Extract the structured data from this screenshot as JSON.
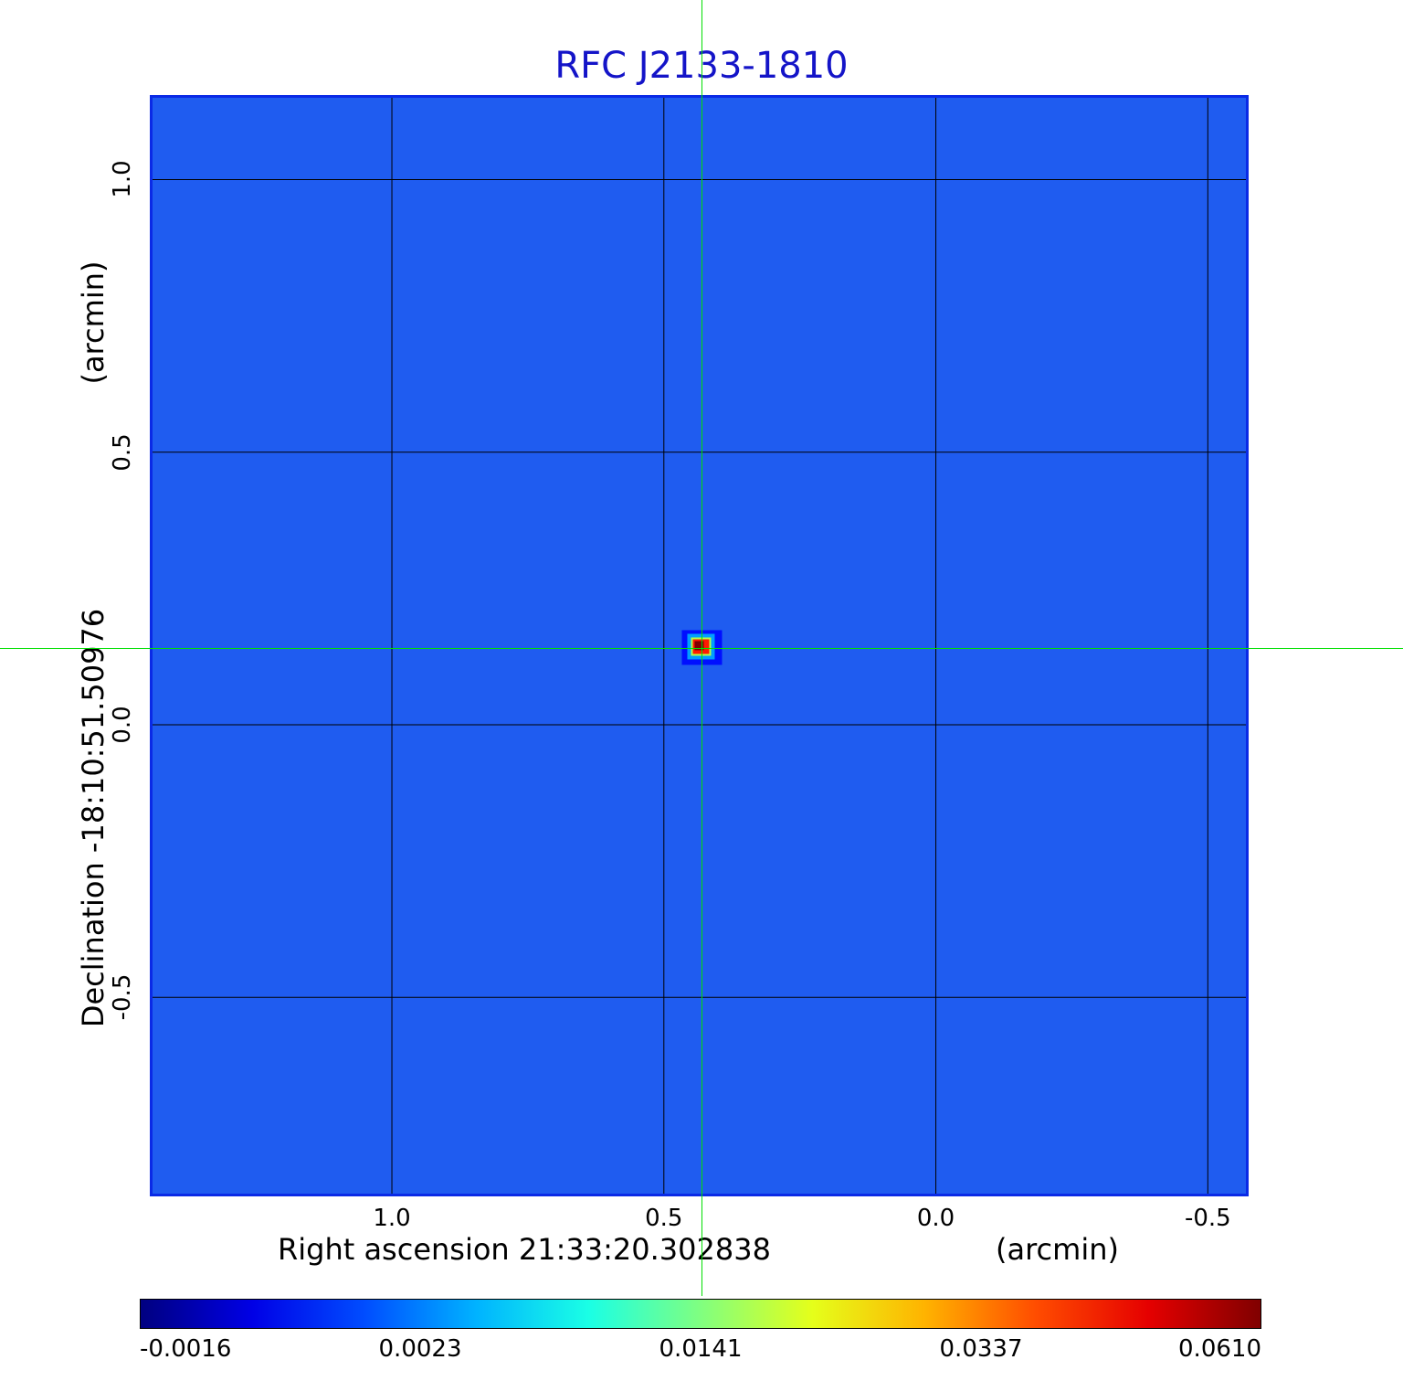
{
  "chart_data": {
    "type": "heatmap",
    "title": "RFC J2133-1810",
    "xlabel": "Right ascension  21:33:20.302838",
    "xunit": "(arcmin)",
    "ylabel": "Declination  -18:10:51.50976",
    "yunit": "(arcmin)",
    "xlim": [
      1.44,
      -0.57
    ],
    "ylim": [
      -0.86,
      1.15
    ],
    "x_ticks": [
      {
        "value": 1.0,
        "label": "1.0"
      },
      {
        "value": 0.5,
        "label": "0.5"
      },
      {
        "value": 0.0,
        "label": "0.0"
      },
      {
        "value": -0.5,
        "label": "-0.5"
      }
    ],
    "y_ticks": [
      {
        "value": 1.0,
        "label": "1.0"
      },
      {
        "value": 0.5,
        "label": "0.5"
      },
      {
        "value": 0.0,
        "label": "0.0"
      },
      {
        "value": -0.5,
        "label": "-0.5"
      }
    ],
    "grid": true,
    "colormap": "jet",
    "colorbar": {
      "position": "bottom",
      "ticks": [
        "-0.0016",
        "0.0023",
        "0.0141",
        "0.0337",
        "0.0610"
      ],
      "min": -0.0016,
      "max": 0.061
    },
    "source": {
      "x": 0.43,
      "y": 0.14,
      "peak": 0.061
    },
    "crosshair": {
      "x": 0.43,
      "y": 0.14
    }
  },
  "colors": {
    "title": "#1414c8",
    "background_map": "#1f5cf0",
    "grid": "#000000",
    "crosshair": "#00e000",
    "frame": "#0a2ae6"
  }
}
